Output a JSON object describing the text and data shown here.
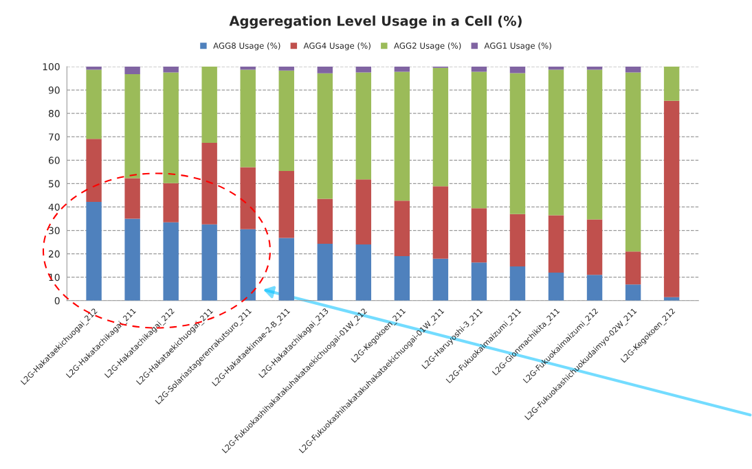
{
  "chart_data": {
    "type": "bar",
    "title": "Aggeregation Level Usage in a Cell (%)",
    "categories": [
      "L2G-Hakataekichuogai_212",
      "L2G-Hakatachikagai_211",
      "L2G-Hakatachikagai_212",
      "L2G-Hakataekichuogai_211",
      "L2G-Solariastagerenrakutsuro_211",
      "L2G-Hakataekimae-2-B_211",
      "L2G-Hakatachikagai_213",
      "L2G-Fukuokashihakatakuhakataekichuogai-01W_212",
      "L2G-Kegokoen_211",
      "L2G-Fukuokashihakatakuhakataekichuogai-01W_211",
      "L2G-Haruyoshi-3_211",
      "L2G-Fukuokaimaizumi_211",
      "L2G-Gionmachikita_211",
      "L2G-Fukuokaimaizumi_212",
      "L2G-Fukuokashichuokudaimyo-02W_211",
      "L2G-Kegokoen_212"
    ],
    "stacked": true,
    "series": [
      {
        "name": "AGG8 Usage (%)",
        "color": "#4f81bd",
        "values": [
          42.2,
          35.0,
          33.5,
          32.6,
          30.5,
          26.8,
          24.3,
          24.0,
          19.0,
          17.9,
          16.3,
          14.6,
          12.0,
          11.0,
          6.9,
          1.5
        ]
      },
      {
        "name": "AGG4 Usage (%)",
        "color": "#c0504d",
        "values": [
          26.9,
          17.3,
          16.7,
          34.8,
          26.5,
          28.6,
          19.2,
          27.8,
          23.7,
          31.0,
          23.2,
          22.4,
          24.5,
          23.7,
          14.1,
          83.9
        ]
      },
      {
        "name": "AGG2 Usage (%)",
        "color": "#9bbb59",
        "values": [
          29.6,
          44.5,
          47.3,
          32.6,
          41.7,
          42.9,
          53.6,
          45.7,
          55.1,
          50.6,
          58.3,
          60.2,
          62.2,
          64.0,
          76.5,
          14.6
        ]
      },
      {
        "name": "AGG1 Usage (%)",
        "color": "#8064a2",
        "values": [
          1.3,
          3.2,
          2.5,
          0,
          1.3,
          1.7,
          2.9,
          2.5,
          2.2,
          0.5,
          2.2,
          2.8,
          1.3,
          1.3,
          2.5,
          0
        ]
      }
    ],
    "ylim": [
      0,
      100
    ],
    "yticks": [
      0,
      10,
      20,
      30,
      40,
      50,
      60,
      70,
      80,
      90,
      100
    ],
    "grid": "y",
    "legend": "top"
  }
}
